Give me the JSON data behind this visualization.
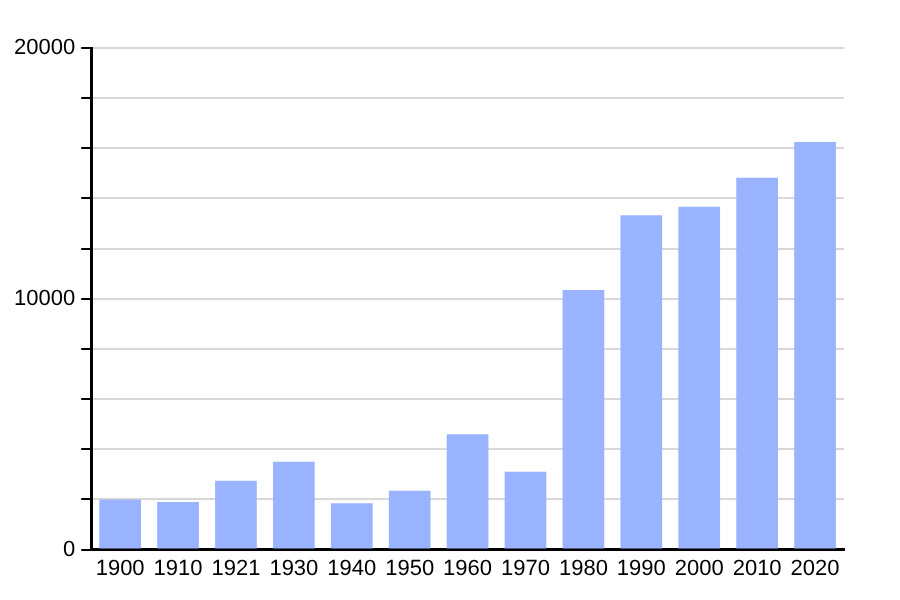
{
  "chart_data": {
    "type": "bar",
    "categories": [
      "1900",
      "1910",
      "1921",
      "1930",
      "1940",
      "1950",
      "1960",
      "1970",
      "1980",
      "1990",
      "2000",
      "2010",
      "2020"
    ],
    "values": [
      2000,
      1900,
      2750,
      3500,
      1850,
      2350,
      4600,
      3100,
      10350,
      13330,
      13670,
      14830,
      16250
    ],
    "color": "#99b3ff",
    "ylim": [
      0,
      20000
    ],
    "yticks": [
      0,
      {
        "value": 2000,
        "label": null
      },
      {
        "value": 4000,
        "label": null
      },
      {
        "value": 6000,
        "label": null
      },
      {
        "value": 8000,
        "label": null
      },
      10000,
      {
        "value": 12000,
        "label": null
      },
      {
        "value": 14000,
        "label": null
      },
      {
        "value": 16000,
        "label": null
      },
      {
        "value": 18000,
        "label": null
      },
      20000
    ],
    "grid": "y",
    "legend": false
  }
}
